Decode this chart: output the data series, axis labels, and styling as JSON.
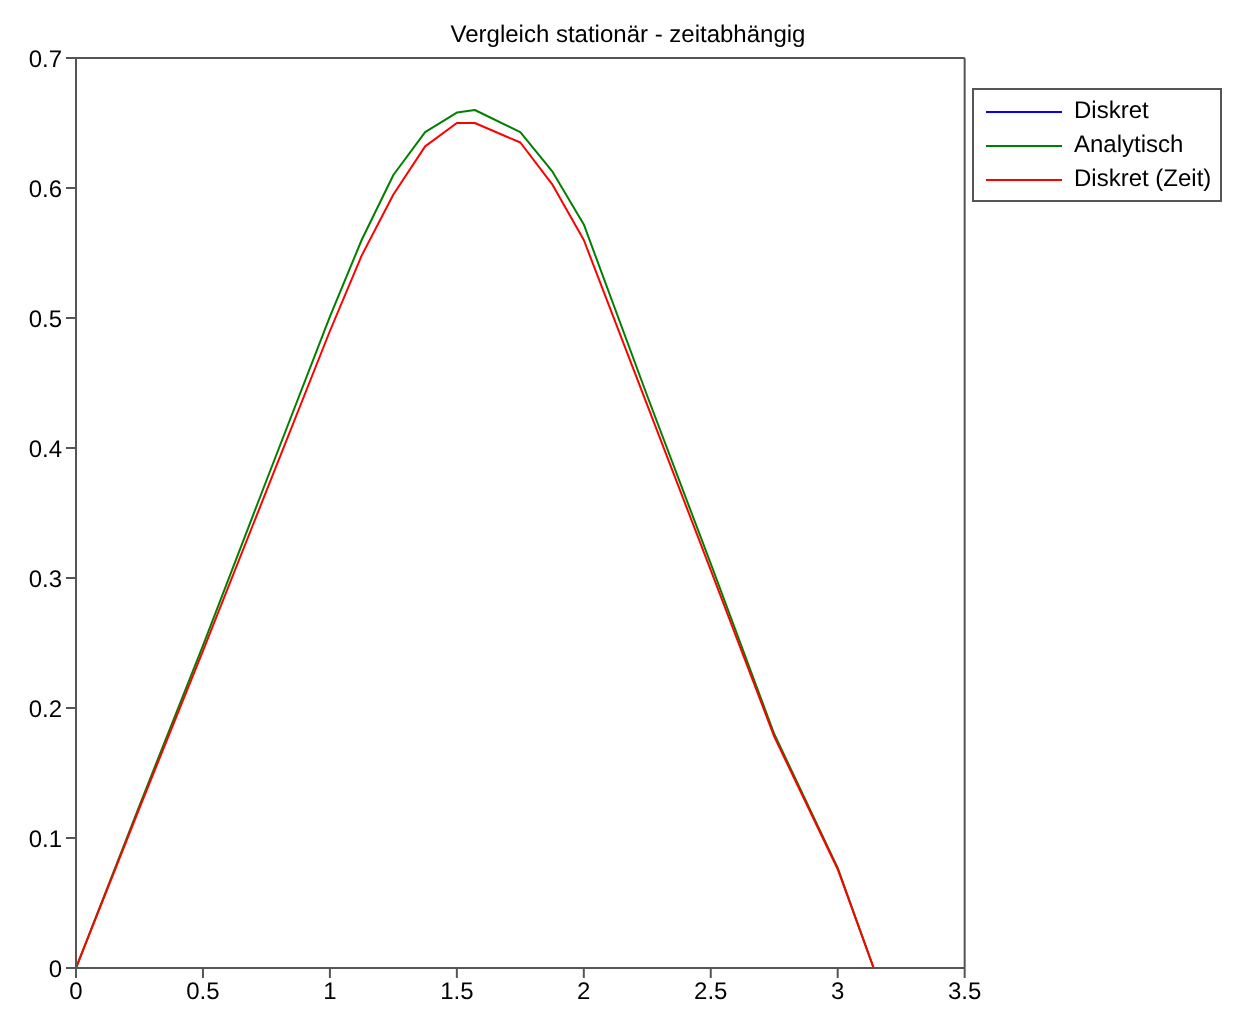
{
  "chart_data": {
    "type": "line",
    "title": "Vergleich stationär - zeitabhängig",
    "x": [
      0,
      0.25,
      0.5,
      0.75,
      1,
      1.125,
      1.25,
      1.375,
      1.5,
      1.5708,
      1.75,
      1.875,
      2,
      2.25,
      2.5,
      2.75,
      3,
      3.1416
    ],
    "series": [
      {
        "name": "Diskret",
        "color": "#0000ff",
        "values": [
          null,
          null,
          null,
          null,
          null,
          null,
          null,
          null,
          null,
          null,
          null,
          null,
          null,
          null,
          null,
          null,
          null,
          null
        ]
      },
      {
        "name": "Analytisch",
        "color": "#008000",
        "values": [
          0,
          0.125,
          0.248,
          0.375,
          0.501,
          0.56,
          0.61,
          0.643,
          0.658,
          0.66,
          0.643,
          0.613,
          0.572,
          0.44,
          0.311,
          0.18,
          0.077,
          0
        ]
      },
      {
        "name": "Diskret (Zeit)",
        "color": "#ff0000",
        "values": [
          0,
          0.123,
          0.244,
          0.367,
          0.49,
          0.548,
          0.595,
          0.632,
          0.65,
          0.65,
          0.635,
          0.603,
          0.56,
          0.433,
          0.306,
          0.178,
          0.076,
          0
        ]
      }
    ],
    "xlim": [
      0,
      3.5
    ],
    "xticks": [
      0,
      0.5,
      1,
      1.5,
      2,
      2.5,
      3,
      3.5
    ],
    "ylim": [
      0,
      0.7
    ],
    "yticks": [
      0,
      0.1,
      0.2,
      0.3,
      0.4,
      0.5,
      0.6,
      0.7
    ],
    "legend": "top right",
    "marker": "none",
    "line_style": "solid"
  }
}
